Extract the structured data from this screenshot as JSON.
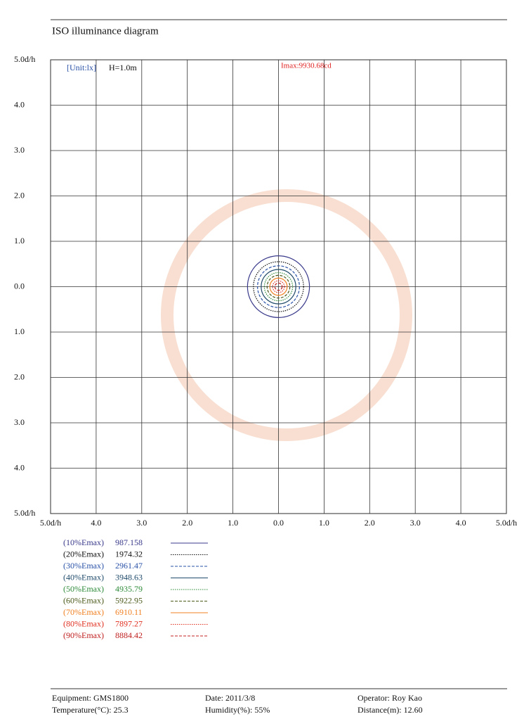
{
  "chart_data": {
    "type": "contour",
    "title": "ISO illuminance diagram",
    "annotations": {
      "unit": "[Unit:lx]",
      "height": "H=1.0m",
      "imax": "Imax:9930.68cd"
    },
    "xlim": [
      -5,
      5
    ],
    "ylim": [
      -5,
      5
    ],
    "xticks": [
      {
        "value": -5,
        "label": "5.0d/h"
      },
      {
        "value": -4,
        "label": "4.0"
      },
      {
        "value": -3,
        "label": "3.0"
      },
      {
        "value": -2,
        "label": "2.0"
      },
      {
        "value": -1,
        "label": "1.0"
      },
      {
        "value": 0,
        "label": "0.0"
      },
      {
        "value": 1,
        "label": "1.0"
      },
      {
        "value": 2,
        "label": "2.0"
      },
      {
        "value": 3,
        "label": "3.0"
      },
      {
        "value": 4,
        "label": "4.0"
      },
      {
        "value": 5,
        "label": "5.0d/h"
      }
    ],
    "yticks": [
      {
        "value": 5,
        "label": "5.0d/h"
      },
      {
        "value": 4,
        "label": "4.0"
      },
      {
        "value": 3,
        "label": "3.0"
      },
      {
        "value": 2,
        "label": "2.0"
      },
      {
        "value": 1,
        "label": "1.0"
      },
      {
        "value": 0,
        "label": "0.0"
      },
      {
        "value": -1,
        "label": "1.0"
      },
      {
        "value": -2,
        "label": "2.0"
      },
      {
        "value": -3,
        "label": "3.0"
      },
      {
        "value": -4,
        "label": "4.0"
      },
      {
        "value": -5,
        "label": "5.0d/h"
      }
    ],
    "grid": true,
    "series": [
      {
        "name": "(10%Emax)",
        "level": 987.158,
        "radius": 0.68,
        "color": "#3a3a8c",
        "dash": "solid"
      },
      {
        "name": "(20%Emax)",
        "level": 1974.32,
        "radius": 0.55,
        "color": "#111111",
        "dash": "dotted"
      },
      {
        "name": "(30%Emax)",
        "level": 2961.47,
        "radius": 0.46,
        "color": "#2a52a8",
        "dash": "dashed"
      },
      {
        "name": "(40%Emax)",
        "level": 3948.63,
        "radius": 0.38,
        "color": "#1f4a6a",
        "dash": "solid"
      },
      {
        "name": "(50%Emax)",
        "level": 4935.79,
        "radius": 0.31,
        "color": "#2e8b3a",
        "dash": "dotted"
      },
      {
        "name": "(60%Emax)",
        "level": 5922.95,
        "radius": 0.25,
        "color": "#4a5a1a",
        "dash": "dashed"
      },
      {
        "name": "(70%Emax)",
        "level": 6910.11,
        "radius": 0.19,
        "color": "#f08020",
        "dash": "solid"
      },
      {
        "name": "(80%Emax)",
        "level": 7897.27,
        "radius": 0.13,
        "color": "#e03020",
        "dash": "dotted"
      },
      {
        "name": "(90%Emax)",
        "level": 8884.42,
        "radius": 0.08,
        "color": "#c02020",
        "dash": "dashed"
      }
    ]
  },
  "footer": {
    "equipment": "Equipment: GMS1800",
    "date": "Date: 2011/3/8",
    "operator": "Operator: Roy Kao",
    "temperature": "Temperature(°C): 25.3",
    "humidity": "Humidity(%): 55%",
    "distance": "Distance(m): 12.60"
  }
}
